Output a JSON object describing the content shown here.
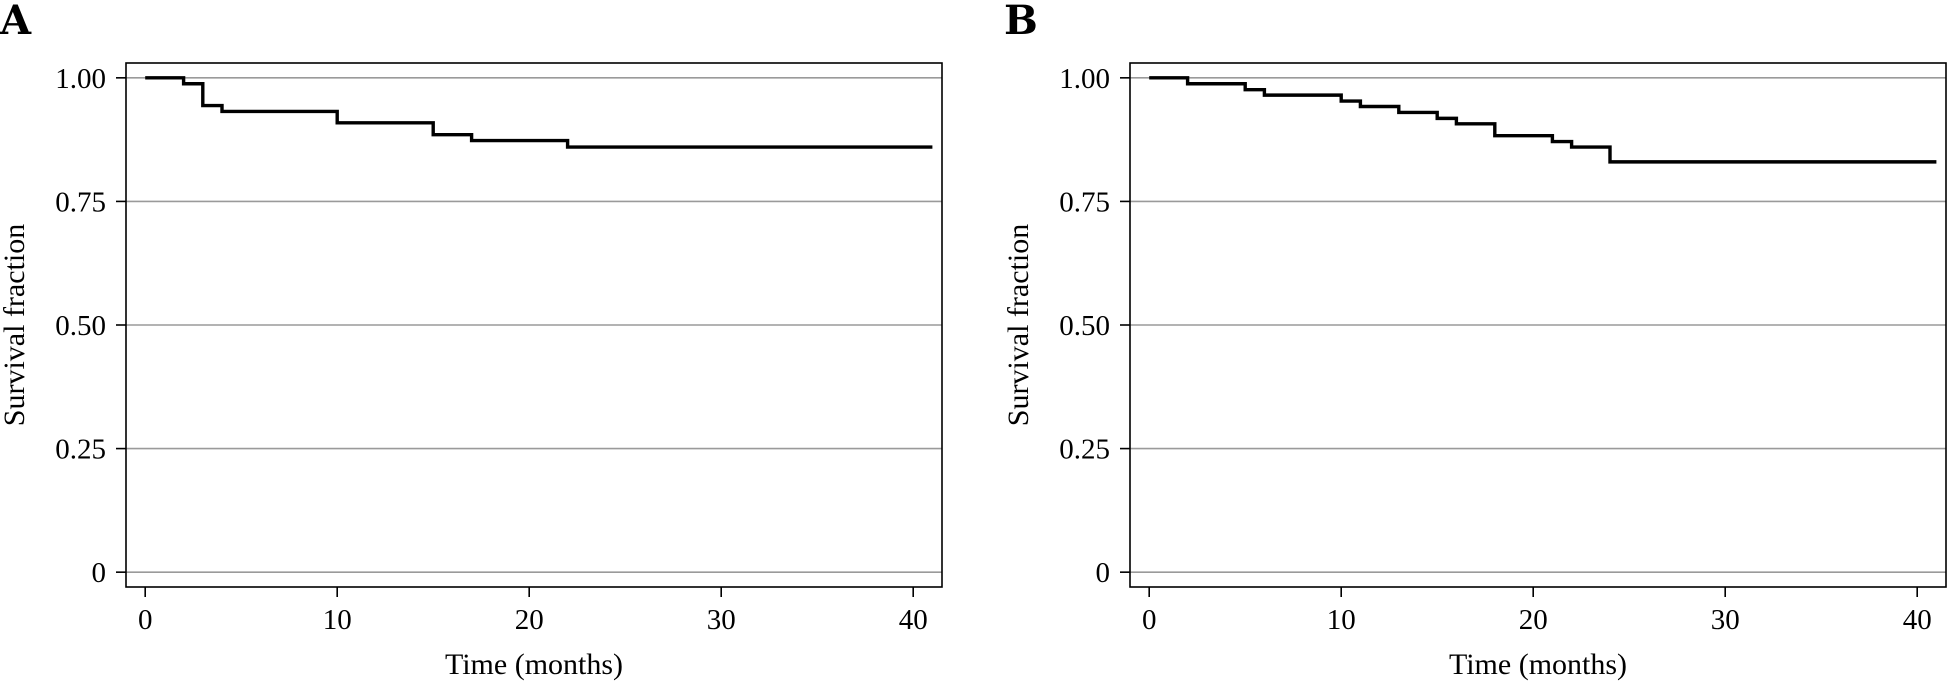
{
  "chart_data": [
    {
      "type": "line",
      "panel_label": "A",
      "xlabel": "Time (months)",
      "ylabel": "Survival fraction",
      "xlim": [
        -1,
        41.5
      ],
      "ylim": [
        -0.03,
        1.03
      ],
      "x_ticks": [
        0,
        10,
        20,
        30,
        40
      ],
      "x_tick_labels": [
        "0",
        "10",
        "20",
        "30",
        "40"
      ],
      "y_ticks": [
        0,
        0.25,
        0.5,
        0.75,
        1.0
      ],
      "y_tick_labels": [
        "0",
        "0.25",
        "0.50",
        "0.75",
        "1.00"
      ],
      "grid": "horizontal",
      "step": true,
      "series": [
        {
          "x": [
            0,
            2,
            3,
            4,
            10,
            15,
            17,
            22,
            41
          ],
          "y": [
            1.0,
            0.988,
            0.944,
            0.932,
            0.909,
            0.885,
            0.873,
            0.86,
            0.86
          ]
        }
      ]
    },
    {
      "type": "line",
      "panel_label": "B",
      "xlabel": "Time (months)",
      "ylabel": "Survival fraction",
      "xlim": [
        -1,
        41.5
      ],
      "ylim": [
        -0.03,
        1.03
      ],
      "x_ticks": [
        0,
        10,
        20,
        30,
        40
      ],
      "x_tick_labels": [
        "0",
        "10",
        "20",
        "30",
        "40"
      ],
      "y_ticks": [
        0,
        0.25,
        0.5,
        0.75,
        1.0
      ],
      "y_tick_labels": [
        "0",
        "0.25",
        "0.50",
        "0.75",
        "1.00"
      ],
      "grid": "horizontal",
      "step": true,
      "series": [
        {
          "x": [
            0,
            2,
            5,
            6,
            10,
            11,
            13,
            15,
            16,
            18,
            21,
            22,
            24,
            41
          ],
          "y": [
            1.0,
            0.988,
            0.976,
            0.965,
            0.953,
            0.942,
            0.93,
            0.918,
            0.907,
            0.883,
            0.871,
            0.86,
            0.83,
            0.83
          ]
        }
      ]
    }
  ]
}
